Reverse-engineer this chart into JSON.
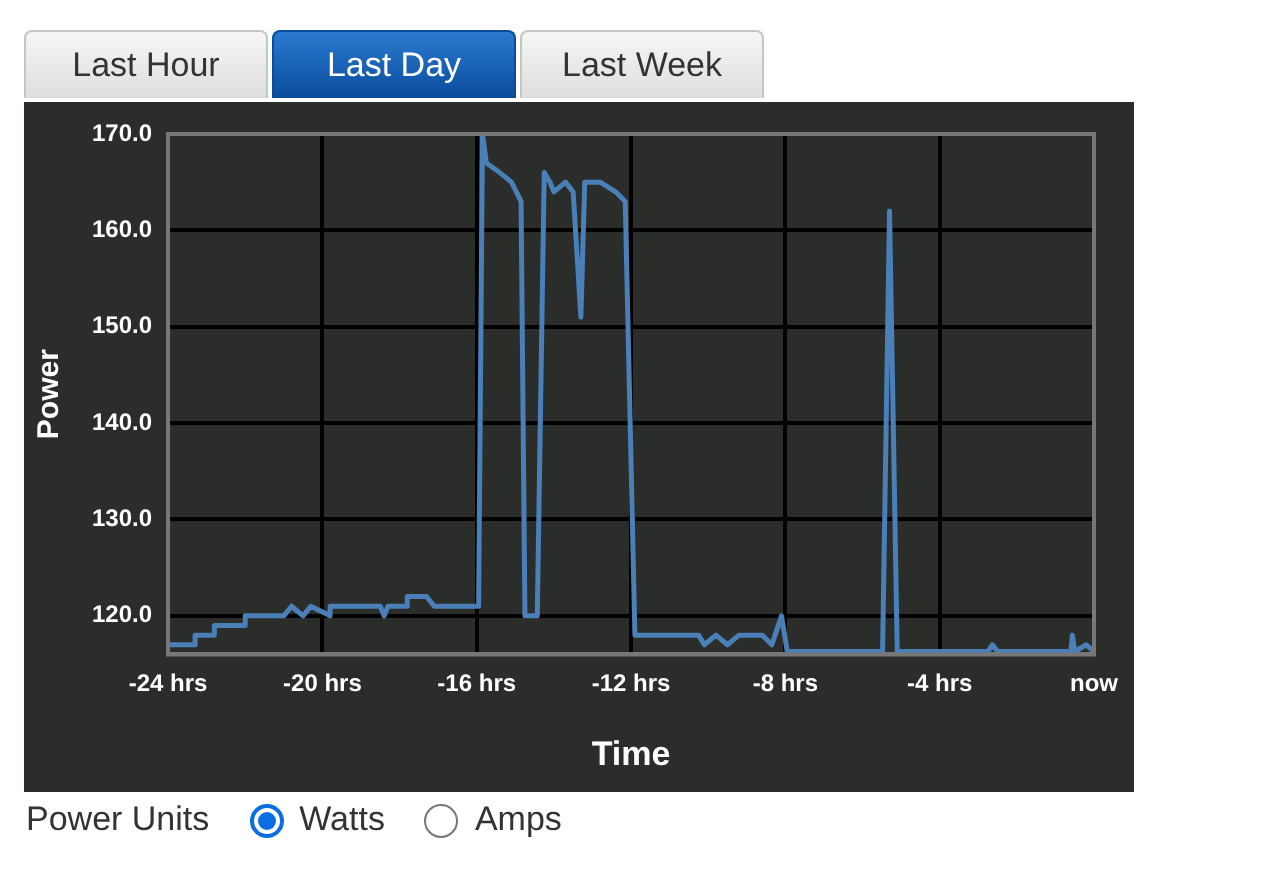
{
  "chart_data": {
    "type": "line",
    "xlabel": "Time",
    "ylabel": "Power",
    "annotations": [
      "Last Hour",
      "Last Day",
      "Last Week",
      "Power Units",
      "Watts",
      "Amps"
    ],
    "xlim": [
      -24,
      0
    ],
    "xticks": [
      {
        "value": -24,
        "label": "-24 hrs"
      },
      {
        "value": -20,
        "label": "-20 hrs"
      },
      {
        "value": -16,
        "label": "-16 hrs"
      },
      {
        "value": -12,
        "label": "-12 hrs"
      },
      {
        "value": -8,
        "label": "-8 hrs"
      },
      {
        "value": -4,
        "label": "-4 hrs"
      },
      {
        "value": 0,
        "label": "now"
      }
    ],
    "ylim": [
      116,
      170
    ],
    "yticks": [
      {
        "value": 120,
        "label": "120.0"
      },
      {
        "value": 130,
        "label": "130.0"
      },
      {
        "value": 140,
        "label": "140.0"
      },
      {
        "value": 150,
        "label": "150.0"
      },
      {
        "value": 160,
        "label": "160.0"
      },
      {
        "value": 170,
        "label": "170.0"
      }
    ],
    "grid": true,
    "marker": "none",
    "series": [
      {
        "color": "#4a7fb8",
        "x": [
          -24,
          -23.3,
          -23.3,
          -22.8,
          -22.8,
          -22,
          -22,
          -21,
          -20.8,
          -20.5,
          -20.3,
          -19.8,
          -19.8,
          -18.5,
          -18.4,
          -18.3,
          -17.8,
          -17.8,
          -17.3,
          -17.1,
          -17.1,
          -15.95,
          -15.85,
          -15.75,
          -15.4,
          -15.1,
          -14.85,
          -14.75,
          -14.43,
          -14.25,
          -14.1,
          -14,
          -13.7,
          -13.5,
          -13.3,
          -13.2,
          -12.8,
          -12.4,
          -12.15,
          -11.9,
          -10.25,
          -10.1,
          -9.8,
          -9.5,
          -9.2,
          -8.6,
          -8.35,
          -8.1,
          -7.95,
          -5.48,
          -5.3,
          -5.1,
          -2.75,
          -2.63,
          -2.5,
          -0.6,
          -0.56,
          -0.5,
          -0.2,
          0
        ],
        "values": [
          117,
          117,
          118,
          118,
          119,
          119,
          120,
          120,
          121,
          120,
          121,
          120,
          121,
          121,
          120,
          121,
          121,
          122,
          122,
          121,
          121,
          121,
          170,
          167,
          166,
          165,
          163,
          120,
          120,
          166,
          165,
          164,
          165,
          164,
          151,
          165,
          165,
          164,
          163,
          118,
          118,
          117,
          118,
          117,
          118,
          118,
          117,
          120,
          116.3,
          116.3,
          162,
          116.3,
          116.3,
          117,
          116.3,
          116.3,
          118,
          116.3,
          117,
          116.3
        ]
      }
    ]
  }
}
